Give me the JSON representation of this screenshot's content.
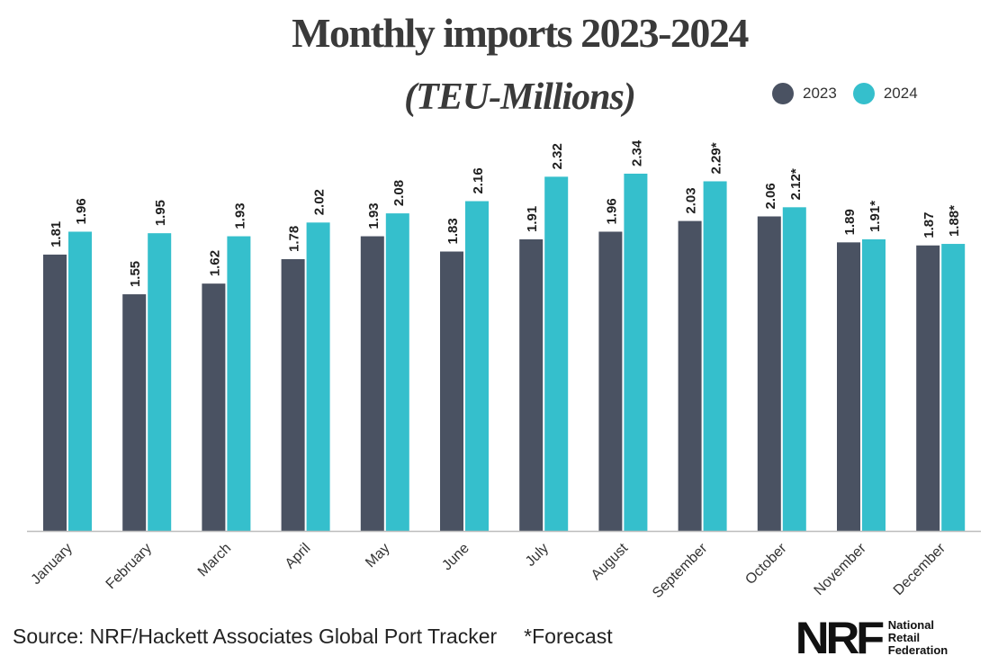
{
  "title": "Monthly imports 2023-2024",
  "subtitle": "(TEU-Millions)",
  "legend": [
    {
      "label": "2023",
      "color": "#4a5262"
    },
    {
      "label": "2024",
      "color": "#35bfcc"
    }
  ],
  "source": "Source: NRF/Hackett Associates Global Port Tracker",
  "forecast_note": "*Forecast",
  "logo": {
    "mark": "NRF",
    "lines": [
      "National",
      "Retail",
      "Federation"
    ]
  },
  "chart_data": {
    "type": "bar",
    "categories": [
      "January",
      "February",
      "March",
      "April",
      "May",
      "June",
      "July",
      "August",
      "September",
      "October",
      "November",
      "December"
    ],
    "series": [
      {
        "name": "2023",
        "color": "#4a5262",
        "values": [
          1.81,
          1.55,
          1.62,
          1.78,
          1.93,
          1.83,
          1.91,
          1.96,
          2.03,
          2.06,
          1.89,
          1.87
        ],
        "labels": [
          "1.81",
          "1.55",
          "1.62",
          "1.78",
          "1.93",
          "1.83",
          "1.91",
          "1.96",
          "2.03",
          "2.06",
          "1.89",
          "1.87"
        ]
      },
      {
        "name": "2024",
        "color": "#35bfcc",
        "values": [
          1.96,
          1.95,
          1.93,
          2.02,
          2.08,
          2.16,
          2.32,
          2.34,
          2.29,
          2.12,
          1.91,
          1.88
        ],
        "labels": [
          "1.96",
          "1.95",
          "1.93",
          "2.02",
          "2.08",
          "2.16",
          "2.32",
          "2.34",
          "2.29*",
          "2.12*",
          "1.91*",
          "1.88*"
        ]
      }
    ],
    "ylim": [
      0,
      2.34
    ],
    "grid": false,
    "legend_position": "top-right"
  }
}
